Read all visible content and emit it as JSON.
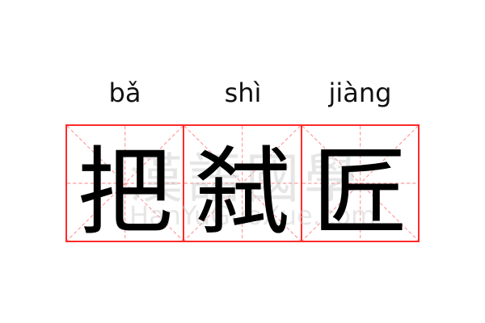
{
  "entries": [
    {
      "pinyin": "bǎ",
      "character": "把"
    },
    {
      "pinyin": "shì",
      "character": "弑"
    },
    {
      "pinyin": "jiàng",
      "character": "匠"
    }
  ],
  "watermark": {
    "text": "漢語國學",
    "url": "HanYuGuoXue.com"
  },
  "colors": {
    "grid_border": "#ff2a2a",
    "guide_lines": "#ff9a9a",
    "character": "#000000"
  }
}
